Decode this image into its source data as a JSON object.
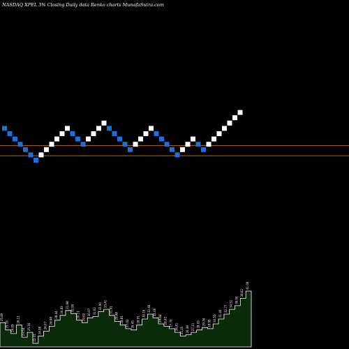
{
  "chart_data": {
    "type": "renko",
    "title": "NASDAQ XPEL  3% Closing Daily data  Renko  charts MunafaSutra.com",
    "brick_size_pct": 3,
    "colors": {
      "background": "#000000",
      "up_brick": "#ffffff",
      "down_brick": "#1e6fd9",
      "reference_line": "#b5651d",
      "volume_fill": "#0a2a0a",
      "volume_stroke": "#ffffff",
      "label_text": "#ffffff"
    },
    "bricks": [
      {
        "dir": "down",
        "level": 8
      },
      {
        "dir": "down",
        "level": 7
      },
      {
        "dir": "down",
        "level": 6
      },
      {
        "dir": "down",
        "level": 5
      },
      {
        "dir": "down",
        "level": 4
      },
      {
        "dir": "down",
        "level": 3
      },
      {
        "dir": "down",
        "level": 2
      },
      {
        "dir": "up",
        "level": 3
      },
      {
        "dir": "up",
        "level": 4
      },
      {
        "dir": "up",
        "level": 5
      },
      {
        "dir": "up",
        "level": 6
      },
      {
        "dir": "up",
        "level": 7
      },
      {
        "dir": "up",
        "level": 8
      },
      {
        "dir": "down",
        "level": 7
      },
      {
        "dir": "down",
        "level": 6
      },
      {
        "dir": "down",
        "level": 5
      },
      {
        "dir": "up",
        "level": 6
      },
      {
        "dir": "up",
        "level": 7
      },
      {
        "dir": "up",
        "level": 8
      },
      {
        "dir": "up",
        "level": 9
      },
      {
        "dir": "down",
        "level": 8
      },
      {
        "dir": "down",
        "level": 7
      },
      {
        "dir": "down",
        "level": 6
      },
      {
        "dir": "down",
        "level": 5
      },
      {
        "dir": "down",
        "level": 4
      },
      {
        "dir": "up",
        "level": 5
      },
      {
        "dir": "up",
        "level": 6
      },
      {
        "dir": "up",
        "level": 7
      },
      {
        "dir": "up",
        "level": 8
      },
      {
        "dir": "down",
        "level": 7
      },
      {
        "dir": "down",
        "level": 6
      },
      {
        "dir": "down",
        "level": 5
      },
      {
        "dir": "down",
        "level": 4
      },
      {
        "dir": "down",
        "level": 3
      },
      {
        "dir": "up",
        "level": 4
      },
      {
        "dir": "up",
        "level": 5
      },
      {
        "dir": "up",
        "level": 6
      },
      {
        "dir": "down",
        "level": 5
      },
      {
        "dir": "down",
        "level": 4
      },
      {
        "dir": "up",
        "level": 5
      },
      {
        "dir": "up",
        "level": 6
      },
      {
        "dir": "up",
        "level": 7
      },
      {
        "dir": "up",
        "level": 8
      },
      {
        "dir": "up",
        "level": 9
      },
      {
        "dir": "up",
        "level": 10
      },
      {
        "dir": "up",
        "level": 11
      }
    ],
    "reference_lines": [
      5.2,
      3.3
    ],
    "volume": {
      "values": [
        40,
        28,
        22,
        36,
        16,
        24,
        6,
        18,
        26,
        34,
        44,
        52,
        60,
        55,
        44,
        40,
        48,
        50,
        58,
        62,
        52,
        42,
        36,
        30,
        28,
        36,
        46,
        54,
        48,
        38,
        34,
        30,
        24,
        18,
        20,
        24,
        28,
        32,
        30,
        38,
        46,
        54,
        62,
        68,
        80,
        92
      ],
      "labels": [
        "25.49",
        "25.19",
        "24.09",
        "26.11",
        "23.54",
        "25.16",
        "22.31",
        "24.08",
        "26.07",
        "26.98",
        "28.44",
        "30.83",
        "31.98",
        "32.90",
        "30.11",
        "29.02",
        "30.07",
        "31.02",
        "32.90",
        "33.41",
        "31.91",
        "29.48",
        "28.81",
        "27.02",
        "26.45",
        "28.91",
        "30.16",
        "32.46",
        "31.06",
        "29.68",
        "28.43",
        "27.70",
        "26.41",
        "25.15",
        "26.38",
        "27.11",
        "28.05",
        "29.36",
        "28.95",
        "30.55",
        "31.40",
        "32.77",
        "34.51",
        "36.00",
        "38.62",
        "41.09"
      ]
    }
  }
}
